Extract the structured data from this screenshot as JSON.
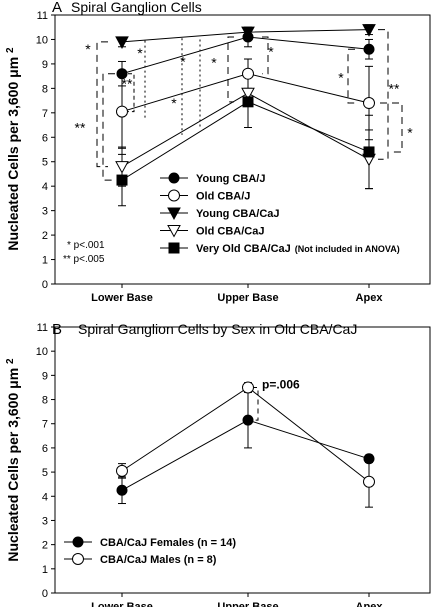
{
  "chart_data": [
    {
      "panel": "A",
      "type": "line",
      "title": "Spiral Ganglion Cells",
      "ylabel": "Nucleated Cells per 3,600 μm²",
      "xlabel": "",
      "categories": [
        "Lower Base",
        "Upper Base",
        "Apex"
      ],
      "ylim": [
        0,
        11
      ],
      "yticks": [
        0,
        1,
        2,
        3,
        4,
        5,
        6,
        7,
        8,
        9,
        10,
        11
      ],
      "grid": false,
      "legend_position": "bottom-center",
      "series": [
        {
          "name": "Young CBA/J",
          "marker": "filled-circle",
          "values": [
            8.6,
            10.1,
            9.6
          ],
          "err": [
            0.5,
            0.4,
            0.4
          ]
        },
        {
          "name": "Old CBA/J",
          "marker": "open-circle",
          "values": [
            7.05,
            8.6,
            7.4
          ],
          "err": [
            1.5,
            0.6,
            1.5
          ]
        },
        {
          "name": "Young CBA/CaJ",
          "marker": "filled-triangle",
          "values": [
            9.9,
            10.3,
            10.4
          ],
          "err": [
            0.2,
            0.2,
            0.2
          ]
        },
        {
          "name": "Old CBA/CaJ",
          "marker": "open-triangle",
          "values": [
            4.8,
            7.8,
            5.1
          ],
          "err": [
            0.8,
            1.4,
            1.2
          ]
        },
        {
          "name": "Very Old CBA/CaJ",
          "name_suffix": "(Not included in ANOVA)",
          "marker": "filled-square",
          "values": [
            4.25,
            7.45,
            5.4
          ],
          "err": [
            1.05,
            1.05,
            1.5
          ]
        }
      ],
      "significance_legend": [
        "* p<.001",
        "** p<.005"
      ],
      "significance_marks": [
        "*",
        "**",
        "*",
        "*",
        "*",
        "**",
        "*",
        "*",
        "*",
        "**",
        "*"
      ]
    },
    {
      "panel": "B",
      "type": "line",
      "title": "Spiral Ganglion Cells by Sex in Old CBA/CaJ",
      "ylabel": "Nucleated Cells per 3,600 μm²",
      "xlabel": "",
      "categories": [
        "Lower Base",
        "Upper Base",
        "Apex"
      ],
      "ylim": [
        0,
        11
      ],
      "yticks": [
        0,
        1,
        2,
        3,
        4,
        5,
        6,
        7,
        8,
        9,
        10,
        11
      ],
      "grid": false,
      "legend_position": "bottom-left",
      "series": [
        {
          "name": "CBA/CaJ Females (n = 14)",
          "marker": "filled-circle",
          "values": [
            4.25,
            7.15,
            5.55
          ],
          "err": [
            0.55,
            1.15,
            0.15
          ]
        },
        {
          "name": "CBA/CaJ Males (n = 8)",
          "marker": "open-circle",
          "values": [
            5.05,
            8.5,
            4.6
          ],
          "err": [
            0.3,
            0.2,
            1.05
          ]
        }
      ],
      "annotation": "p=.006"
    }
  ]
}
